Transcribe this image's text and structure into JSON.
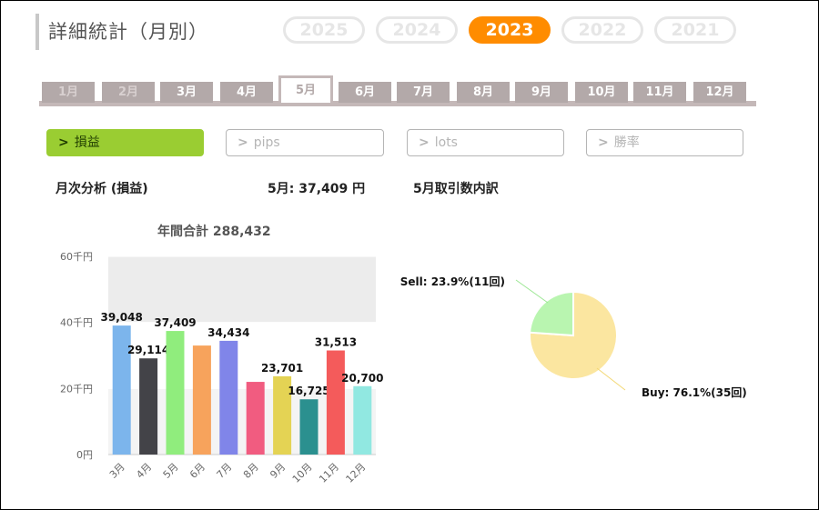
{
  "page": {
    "title": "詳細統計（月別）"
  },
  "years": [
    {
      "label": "2025",
      "active": false
    },
    {
      "label": "2024",
      "active": false
    },
    {
      "label": "2023",
      "active": true
    },
    {
      "label": "2022",
      "active": false
    },
    {
      "label": "2021",
      "active": false
    }
  ],
  "months": [
    {
      "label": "1月",
      "state": "dim"
    },
    {
      "label": "2月",
      "state": "dim"
    },
    {
      "label": "3月",
      "state": "normal"
    },
    {
      "label": "4月",
      "state": "normal"
    },
    {
      "label": "5月",
      "state": "active"
    },
    {
      "label": "6月",
      "state": "normal"
    },
    {
      "label": "7月",
      "state": "normal"
    },
    {
      "label": "8月",
      "state": "normal"
    },
    {
      "label": "9月",
      "state": "normal"
    },
    {
      "label": "10月",
      "state": "normal"
    },
    {
      "label": "11月",
      "state": "normal"
    },
    {
      "label": "12月",
      "state": "normal"
    }
  ],
  "metrics": [
    {
      "label": "損益",
      "chevron": ">",
      "active": true
    },
    {
      "label": "pips",
      "chevron": ">",
      "active": false
    },
    {
      "label": "lots",
      "chevron": ">",
      "active": false
    },
    {
      "label": "勝率",
      "chevron": ">",
      "active": false
    }
  ],
  "summary": {
    "analysis_title": "月次分析 (損益)",
    "month_total": "5月:  37,409 円",
    "breakdown_title": "5月取引数内訳",
    "annual_total": "年間合計 288,432"
  },
  "colors": {
    "accent_year": "#ff8c00",
    "metric_active": "#9acd32",
    "tab": "#b3a9a9"
  },
  "chart_data": [
    {
      "type": "bar",
      "categories": [
        "3月",
        "4月",
        "5月",
        "6月",
        "7月",
        "8月",
        "9月",
        "10月",
        "11月",
        "12月"
      ],
      "values": [
        39048,
        29114,
        37409,
        33000,
        34434,
        22000,
        23701,
        16725,
        31513,
        20700
      ],
      "data_labels": [
        "39,048",
        "29,114",
        "37,409",
        "",
        "34,434",
        "",
        "23,701",
        "16,725",
        "31,513",
        "20,700"
      ],
      "colors": [
        "#7cb5ec",
        "#434348",
        "#90ed7d",
        "#f7a35c",
        "#8085e9",
        "#f15c80",
        "#e4d354",
        "#2b908f",
        "#f45b5b",
        "#91e8e1"
      ],
      "y_ticks": [
        {
          "value": 0,
          "label": "0円"
        },
        {
          "value": 20000,
          "label": "20千円"
        },
        {
          "value": 40000,
          "label": "40千円"
        },
        {
          "value": 60000,
          "label": "60千円"
        }
      ],
      "ylim": [
        0,
        60000
      ],
      "grid": true
    },
    {
      "type": "pie",
      "slices": [
        {
          "label": "Buy: 76.1%(35回)",
          "value": 76.1,
          "color": "#fbe6a0"
        },
        {
          "label": "Sell: 23.9%(11回)",
          "value": 23.9,
          "color": "#b9f5b0"
        }
      ]
    }
  ]
}
